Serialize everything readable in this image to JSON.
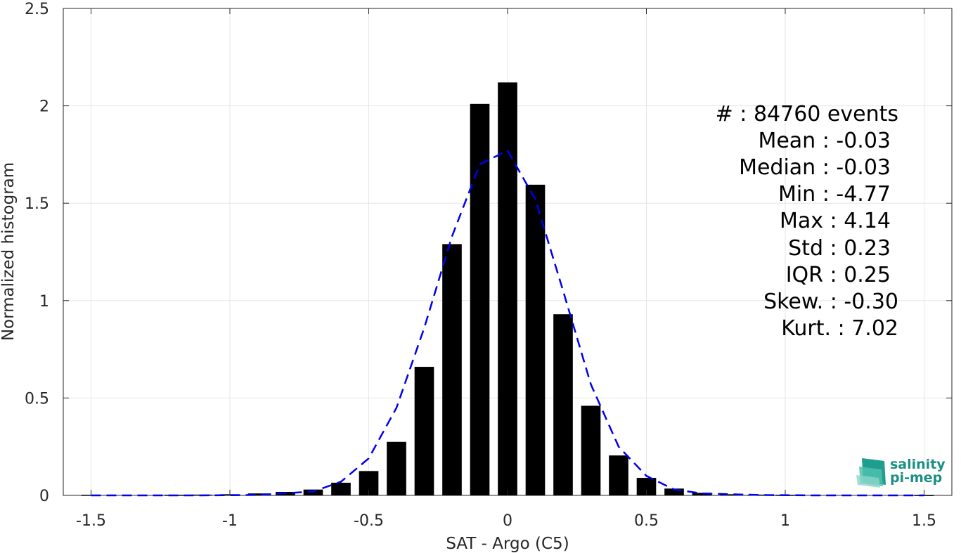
{
  "chart_data": {
    "type": "bar",
    "xlabel": "SAT - Argo (C5)",
    "ylabel": "Normalized histogram",
    "xlim": [
      -1.6,
      1.6
    ],
    "ylim": [
      0,
      2.5
    ],
    "grid": true,
    "x_ticks": [
      "-1.5",
      "-1",
      "-0.5",
      "0",
      "0.5",
      "1",
      "1.5"
    ],
    "x_tick_values": [
      -1.5,
      -1,
      -0.5,
      0,
      0.5,
      1,
      1.5
    ],
    "y_ticks": [
      "0",
      "0.5",
      "1",
      "1.5",
      "2",
      "2.5"
    ],
    "y_tick_values": [
      0,
      0.5,
      1,
      1.5,
      2,
      2.5
    ],
    "bar_width": 0.07,
    "bar_color": "#000000",
    "bars": {
      "x": [
        -1.5,
        -1.2,
        -1.1,
        -1.0,
        -0.9,
        -0.8,
        -0.7,
        -0.6,
        -0.5,
        -0.4,
        -0.3,
        -0.2,
        -0.1,
        0.0,
        0.1,
        0.2,
        0.3,
        0.4,
        0.5,
        0.6,
        0.7,
        0.8,
        0.9,
        1.0,
        1.5
      ],
      "y": [
        0.003,
        0.003,
        0.004,
        0.006,
        0.01,
        0.018,
        0.03,
        0.065,
        0.125,
        0.275,
        0.66,
        1.29,
        2.01,
        2.12,
        1.595,
        0.93,
        0.46,
        0.205,
        0.09,
        0.035,
        0.013,
        0.006,
        0.004,
        0.003,
        0.002
      ]
    },
    "fit_series": {
      "style": "dashed",
      "color": "#0000ee",
      "x": [
        -1.5,
        -1.3,
        -1.1,
        -0.9,
        -0.7,
        -0.6,
        -0.5,
        -0.4,
        -0.3,
        -0.2,
        -0.1,
        0.0,
        0.1,
        0.2,
        0.3,
        0.4,
        0.5,
        0.6,
        0.7,
        0.9,
        1.1,
        1.3,
        1.5
      ],
      "y": [
        0.0,
        0.0,
        0.0,
        0.002,
        0.02,
        0.07,
        0.19,
        0.45,
        0.86,
        1.33,
        1.7,
        1.77,
        1.52,
        1.05,
        0.57,
        0.25,
        0.1,
        0.03,
        0.01,
        0.002,
        0.0,
        0.0,
        0.0
      ]
    },
    "stats": [
      "#  : 84760 events",
      "Mean : -0.03",
      "Median : -0.03",
      "Min : -4.77",
      "Max : 4.14",
      "Std : 0.23",
      "IQR : 0.25",
      "Skew. : -0.30",
      "Kurt. : 7.02"
    ]
  },
  "logo": {
    "line1": "salinity",
    "line2": "pi-mep",
    "color": "#1a8f84"
  }
}
